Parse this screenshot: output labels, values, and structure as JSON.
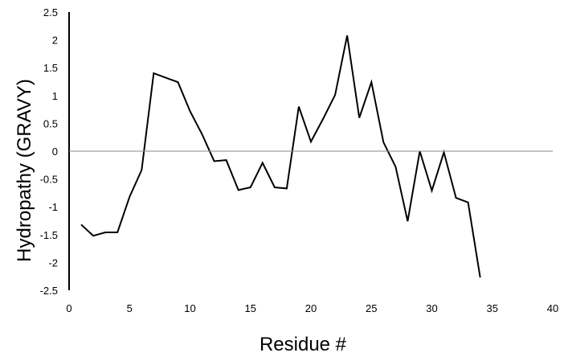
{
  "chart_data": {
    "type": "line",
    "title": "",
    "xlabel": "Residue #",
    "ylabel": "Hydropathy (GRAVY)",
    "xlim": [
      0,
      40
    ],
    "ylim": [
      -2.5,
      2.5
    ],
    "xticks": [
      0,
      5,
      10,
      15,
      20,
      25,
      30,
      35,
      40
    ],
    "yticks": [
      2.5,
      2,
      1.5,
      1,
      0.5,
      0,
      -0.5,
      -1,
      -1.5,
      -2,
      -2.5
    ],
    "xtick_labels": [
      "0",
      "5",
      "10",
      "15",
      "20",
      "25",
      "30",
      "35",
      "40"
    ],
    "ytick_labels": [
      "2.5",
      "2",
      "1.5",
      "1",
      "0.5",
      "0",
      "-0.5",
      "-1",
      "-1.5",
      "-2",
      "-2.5"
    ],
    "grid": false,
    "legend": "none",
    "series": [
      {
        "color": "#000000",
        "x": [
          1,
          2,
          3,
          4,
          5,
          6,
          7,
          8,
          9,
          10,
          11,
          12,
          13,
          14,
          15,
          16,
          17,
          18,
          19,
          20,
          21,
          22,
          23,
          24,
          25,
          26,
          27,
          28,
          29,
          30,
          31,
          32,
          33,
          34
        ],
        "y": [
          -1.32,
          -1.52,
          -1.46,
          -1.46,
          -0.82,
          -0.34,
          1.4,
          1.32,
          1.24,
          0.72,
          0.3,
          -0.18,
          -0.16,
          -0.7,
          -0.65,
          -0.21,
          -0.65,
          -0.67,
          0.8,
          0.17,
          0.58,
          1.01,
          2.08,
          0.6,
          1.24,
          0.16,
          -0.28,
          -1.26,
          0.0,
          -0.71,
          -0.02,
          -0.84,
          -0.92,
          -2.27
        ]
      }
    ]
  },
  "colors": {
    "line": "#000000",
    "axis": "#000000",
    "zero_line": "#8a8a8a",
    "background": "#ffffff"
  }
}
